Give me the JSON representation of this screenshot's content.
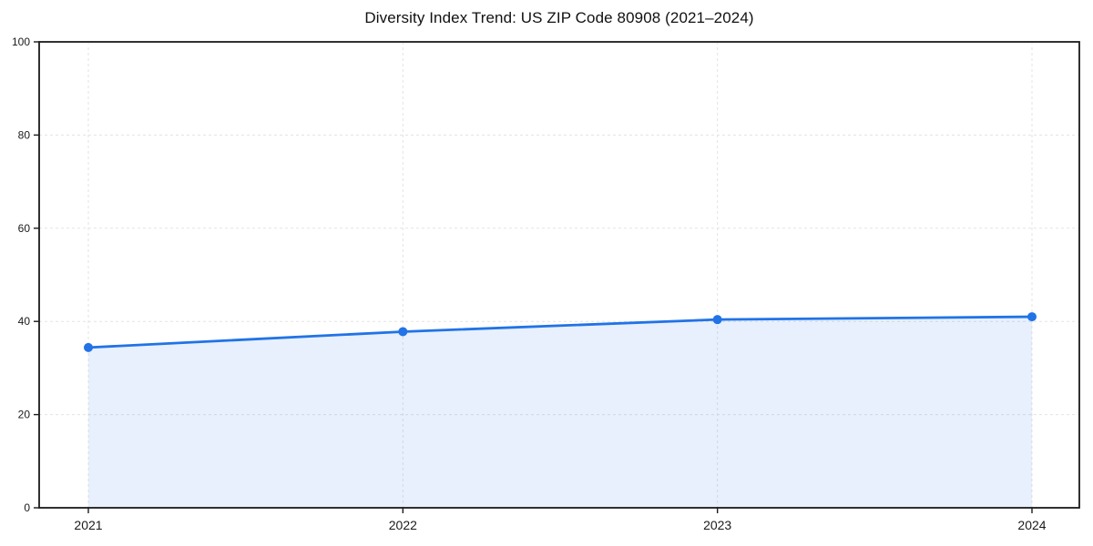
{
  "figure": {
    "title": "Diversity Index Trend: US ZIP Code 80908 (2021–2024)"
  },
  "chart_data": {
    "type": "line",
    "title": "Diversity Index Trend: US ZIP Code 80908 (2021–2024)",
    "x": [
      "2021",
      "2022",
      "2023",
      "2024"
    ],
    "series": [
      {
        "name": "Diversity Index",
        "values": [
          34.4,
          37.8,
          40.4,
          41.0
        ]
      }
    ],
    "xlabel": "",
    "ylabel": "",
    "ylim": [
      0,
      100
    ],
    "yticks": [
      0,
      20,
      40,
      60,
      80,
      100
    ],
    "grid": true,
    "grid_style": "dashed",
    "legend": false,
    "area_fill": true,
    "marker": "circle",
    "colors": {
      "line": "#2173e6",
      "marker": "#2173e6",
      "fill": "rgba(33,115,230,0.11)",
      "grid": "#e3e3e3",
      "axis": "#1a1a1a",
      "text": "#1a1a1a",
      "background": "#ffffff"
    }
  }
}
